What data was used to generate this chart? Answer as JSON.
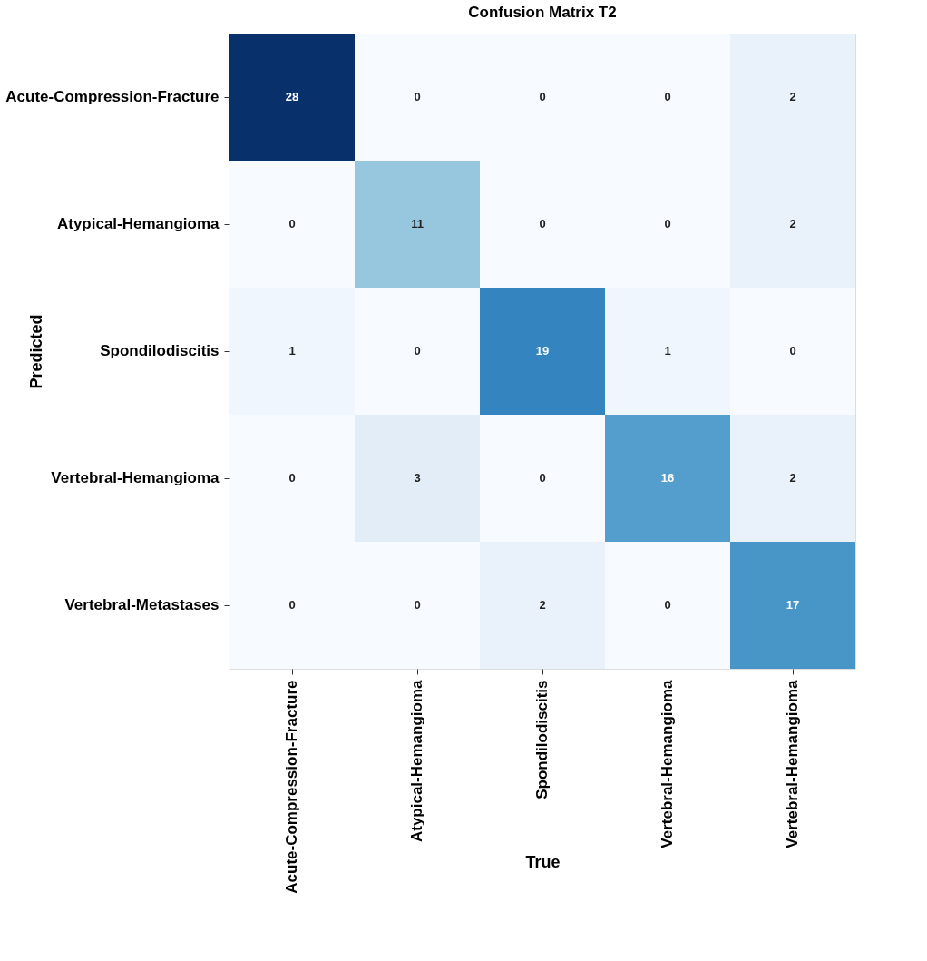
{
  "chart_data": {
    "type": "heatmap",
    "title": "Confusion Matrix T2",
    "xlabel": "True",
    "ylabel": "Predicted",
    "categories": [
      "Acute-Compression-Fracture",
      "Atypical-Hemangioma",
      "Spondilodiscitis",
      "Vertebral-Hemangioma",
      "Vertebral-Hemangioma"
    ],
    "y_categories": [
      "Acute-Compression-Fracture",
      "Atypical-Hemangioma",
      "Spondilodiscitis",
      "Vertebral-Hemangioma",
      "Vertebral-Metastases"
    ],
    "cells": [
      [
        28,
        0,
        0,
        0,
        2
      ],
      [
        0,
        11,
        0,
        0,
        2
      ],
      [
        1,
        0,
        19,
        1,
        0
      ],
      [
        0,
        3,
        0,
        16,
        2
      ],
      [
        0,
        0,
        2,
        0,
        17
      ]
    ],
    "data_labels": true,
    "grid": false,
    "legend": false
  }
}
